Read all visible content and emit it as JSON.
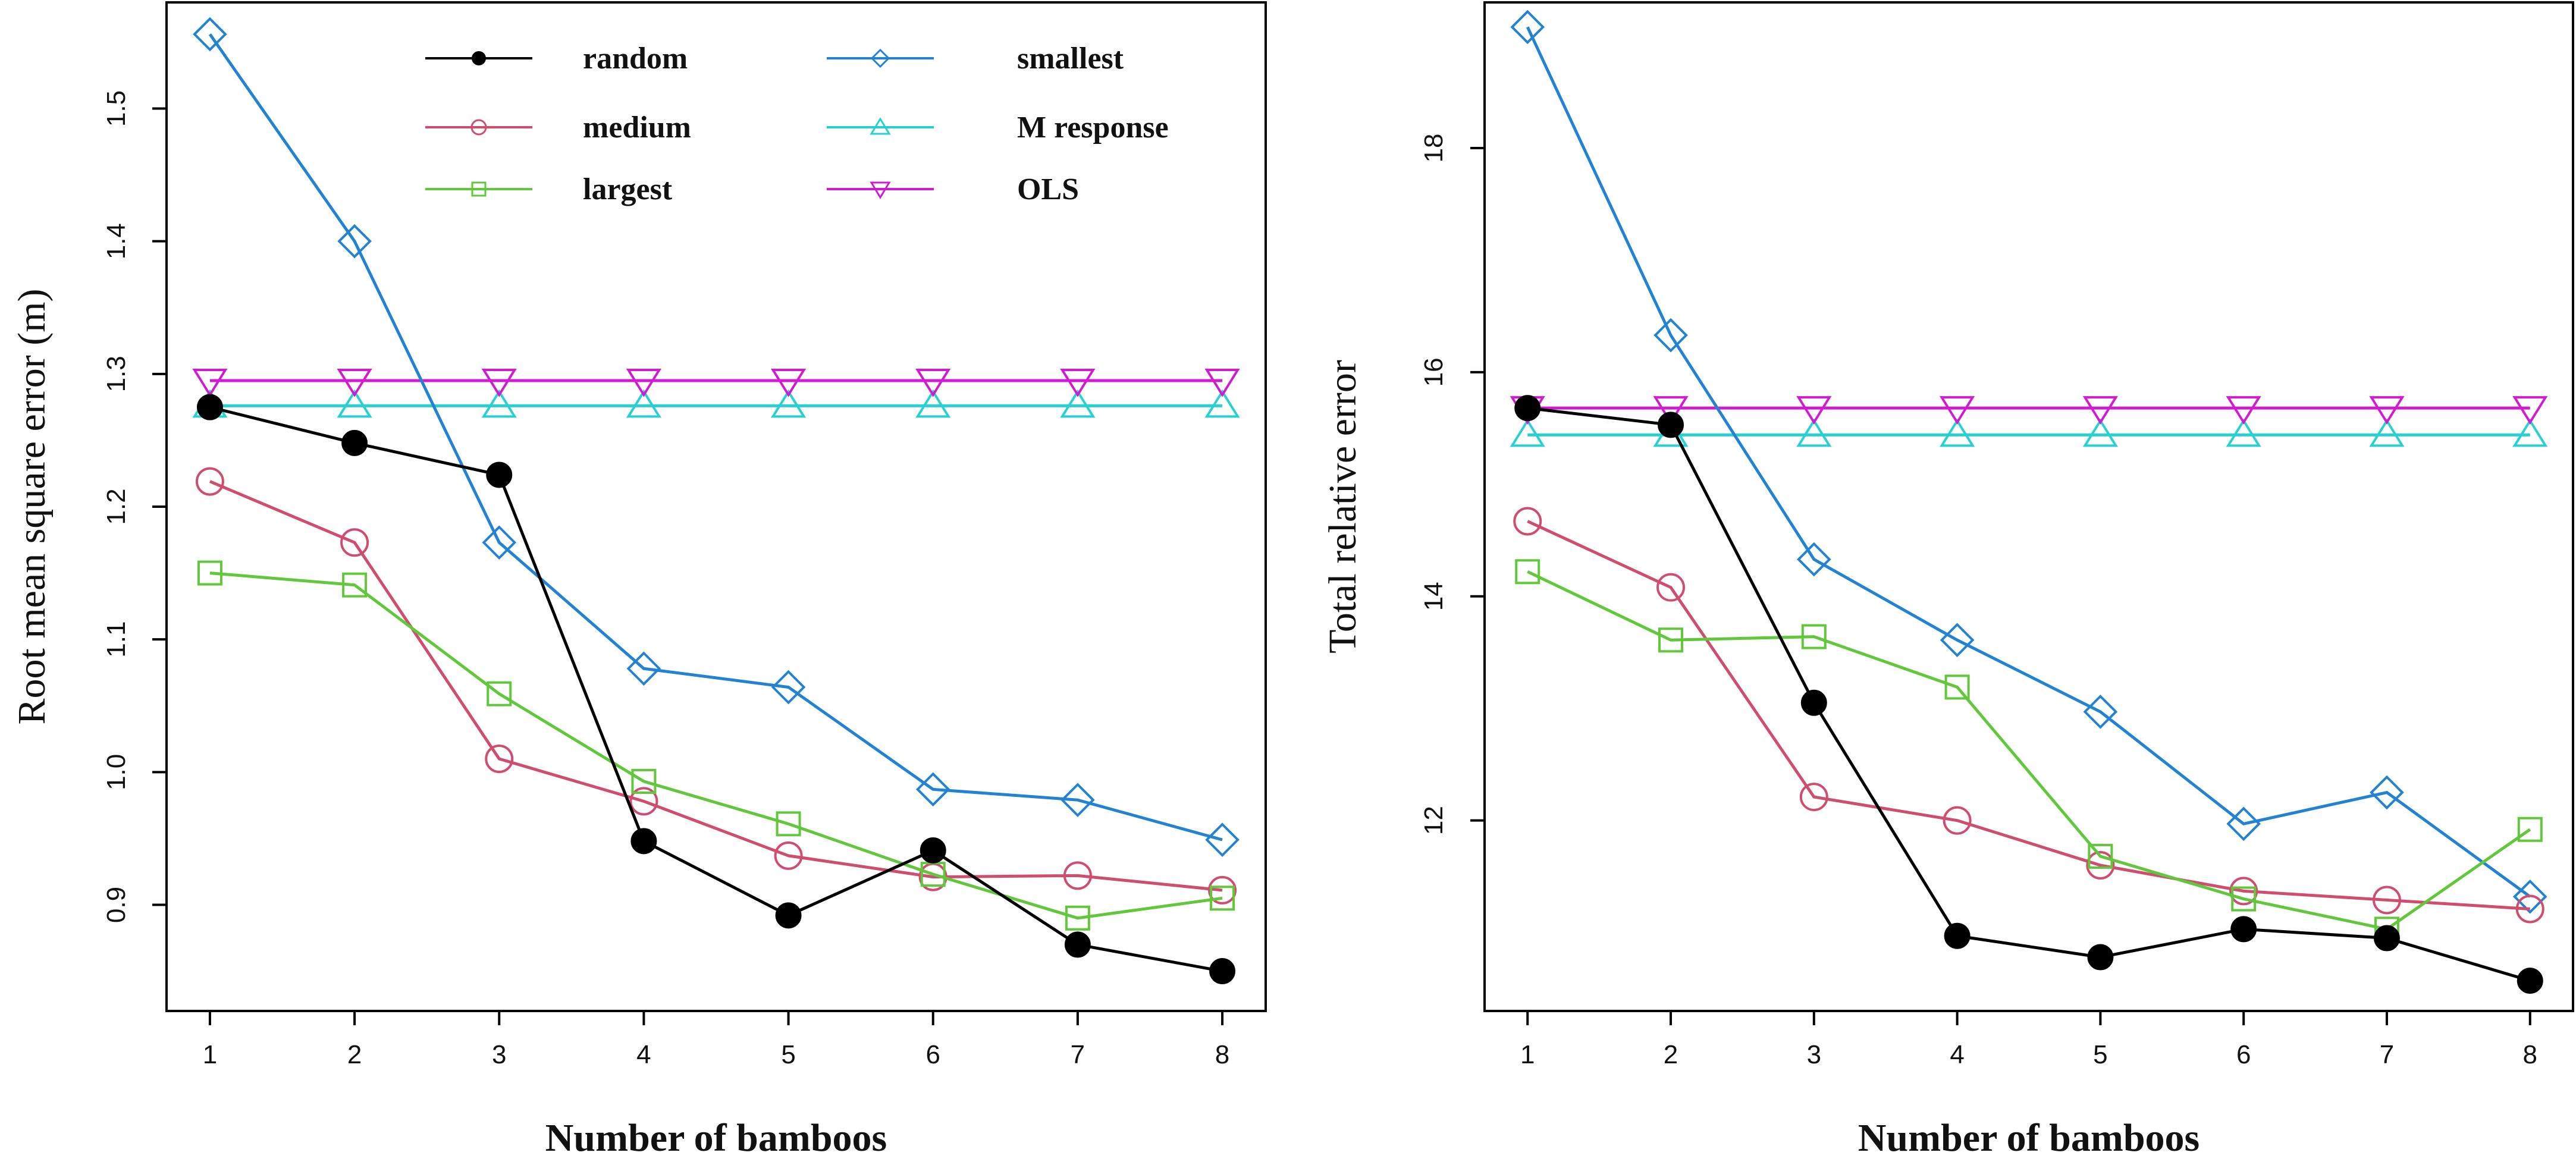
{
  "chart_data": [
    {
      "type": "line",
      "xlabel": "Number of bamboos",
      "ylabel": "Root mean square error (m)",
      "x": [
        1,
        2,
        3,
        4,
        5,
        6,
        7,
        8
      ],
      "xticks": [
        "1",
        "2",
        "3",
        "4",
        "5",
        "6",
        "7",
        "8"
      ],
      "xlim": [
        0.7,
        8.3
      ],
      "ylim": [
        0.82,
        1.58
      ],
      "yticks": [
        0.9,
        1.0,
        1.1,
        1.2,
        1.3,
        1.4,
        1.5
      ],
      "ytick_labels": [
        "0.9",
        "1.0",
        "1.1",
        "1.2",
        "1.3",
        "1.4",
        "1.5"
      ],
      "legend_position": "top",
      "series": [
        {
          "name": "random",
          "color": "#000000",
          "marker": "filled-circle",
          "values": [
            1.275,
            1.248,
            1.224,
            0.948,
            0.892,
            0.941,
            0.87,
            0.85
          ]
        },
        {
          "name": "medium",
          "color": "#cf4d6f",
          "marker": "circle",
          "values": [
            1.219,
            1.173,
            1.01,
            0.978,
            0.937,
            0.921,
            0.922,
            0.911
          ]
        },
        {
          "name": "largest",
          "color": "#61c73b",
          "marker": "square",
          "values": [
            1.15,
            1.141,
            1.059,
            0.993,
            0.961,
            0.923,
            0.89,
            0.905
          ]
        },
        {
          "name": "smallest",
          "color": "#2283d3",
          "marker": "diamond",
          "values": [
            1.556,
            1.4,
            1.173,
            1.078,
            1.064,
            0.987,
            0.979,
            0.949
          ]
        },
        {
          "name": "M response",
          "color": "#28d1d1",
          "marker": "triangle-up",
          "values": [
            1.276,
            1.276,
            1.276,
            1.276,
            1.276,
            1.276,
            1.276,
            1.276
          ]
        },
        {
          "name": "OLS",
          "color": "#d11ad1",
          "marker": "triangle-down",
          "values": [
            1.295,
            1.295,
            1.295,
            1.295,
            1.295,
            1.295,
            1.295,
            1.295
          ]
        }
      ]
    },
    {
      "type": "line",
      "xlabel": "Number of bamboos",
      "ylabel": "Total relative error",
      "x": [
        1,
        2,
        3,
        4,
        5,
        6,
        7,
        8
      ],
      "xticks": [
        "1",
        "2",
        "3",
        "4",
        "5",
        "6",
        "7",
        "8"
      ],
      "xlim": [
        0.7,
        8.3
      ],
      "ylim": [
        10.3,
        19.3
      ],
      "yticks": [
        12,
        14,
        16,
        18
      ],
      "ytick_labels": [
        "12",
        "14",
        "16",
        "18"
      ],
      "series": [
        {
          "name": "random",
          "color": "#000000",
          "marker": "filled-circle",
          "values": [
            15.68,
            15.53,
            13.05,
            10.97,
            10.78,
            11.03,
            10.95,
            10.57
          ]
        },
        {
          "name": "medium",
          "color": "#cf4d6f",
          "marker": "circle",
          "values": [
            14.67,
            14.08,
            12.21,
            12.0,
            11.6,
            11.37,
            11.29,
            11.21
          ]
        },
        {
          "name": "largest",
          "color": "#61c73b",
          "marker": "square",
          "values": [
            14.22,
            13.61,
            13.64,
            13.19,
            11.68,
            11.3,
            11.03,
            11.92
          ]
        },
        {
          "name": "smallest",
          "color": "#2283d3",
          "marker": "diamond",
          "values": [
            19.08,
            16.33,
            14.33,
            13.61,
            12.97,
            11.97,
            12.25,
            11.32
          ]
        },
        {
          "name": "M response",
          "color": "#28d1d1",
          "marker": "triangle-up",
          "values": [
            15.44,
            15.44,
            15.44,
            15.44,
            15.44,
            15.44,
            15.44,
            15.44
          ]
        },
        {
          "name": "OLS",
          "color": "#d11ad1",
          "marker": "triangle-down",
          "values": [
            15.68,
            15.68,
            15.68,
            15.68,
            15.68,
            15.68,
            15.68,
            15.68
          ]
        }
      ]
    }
  ]
}
